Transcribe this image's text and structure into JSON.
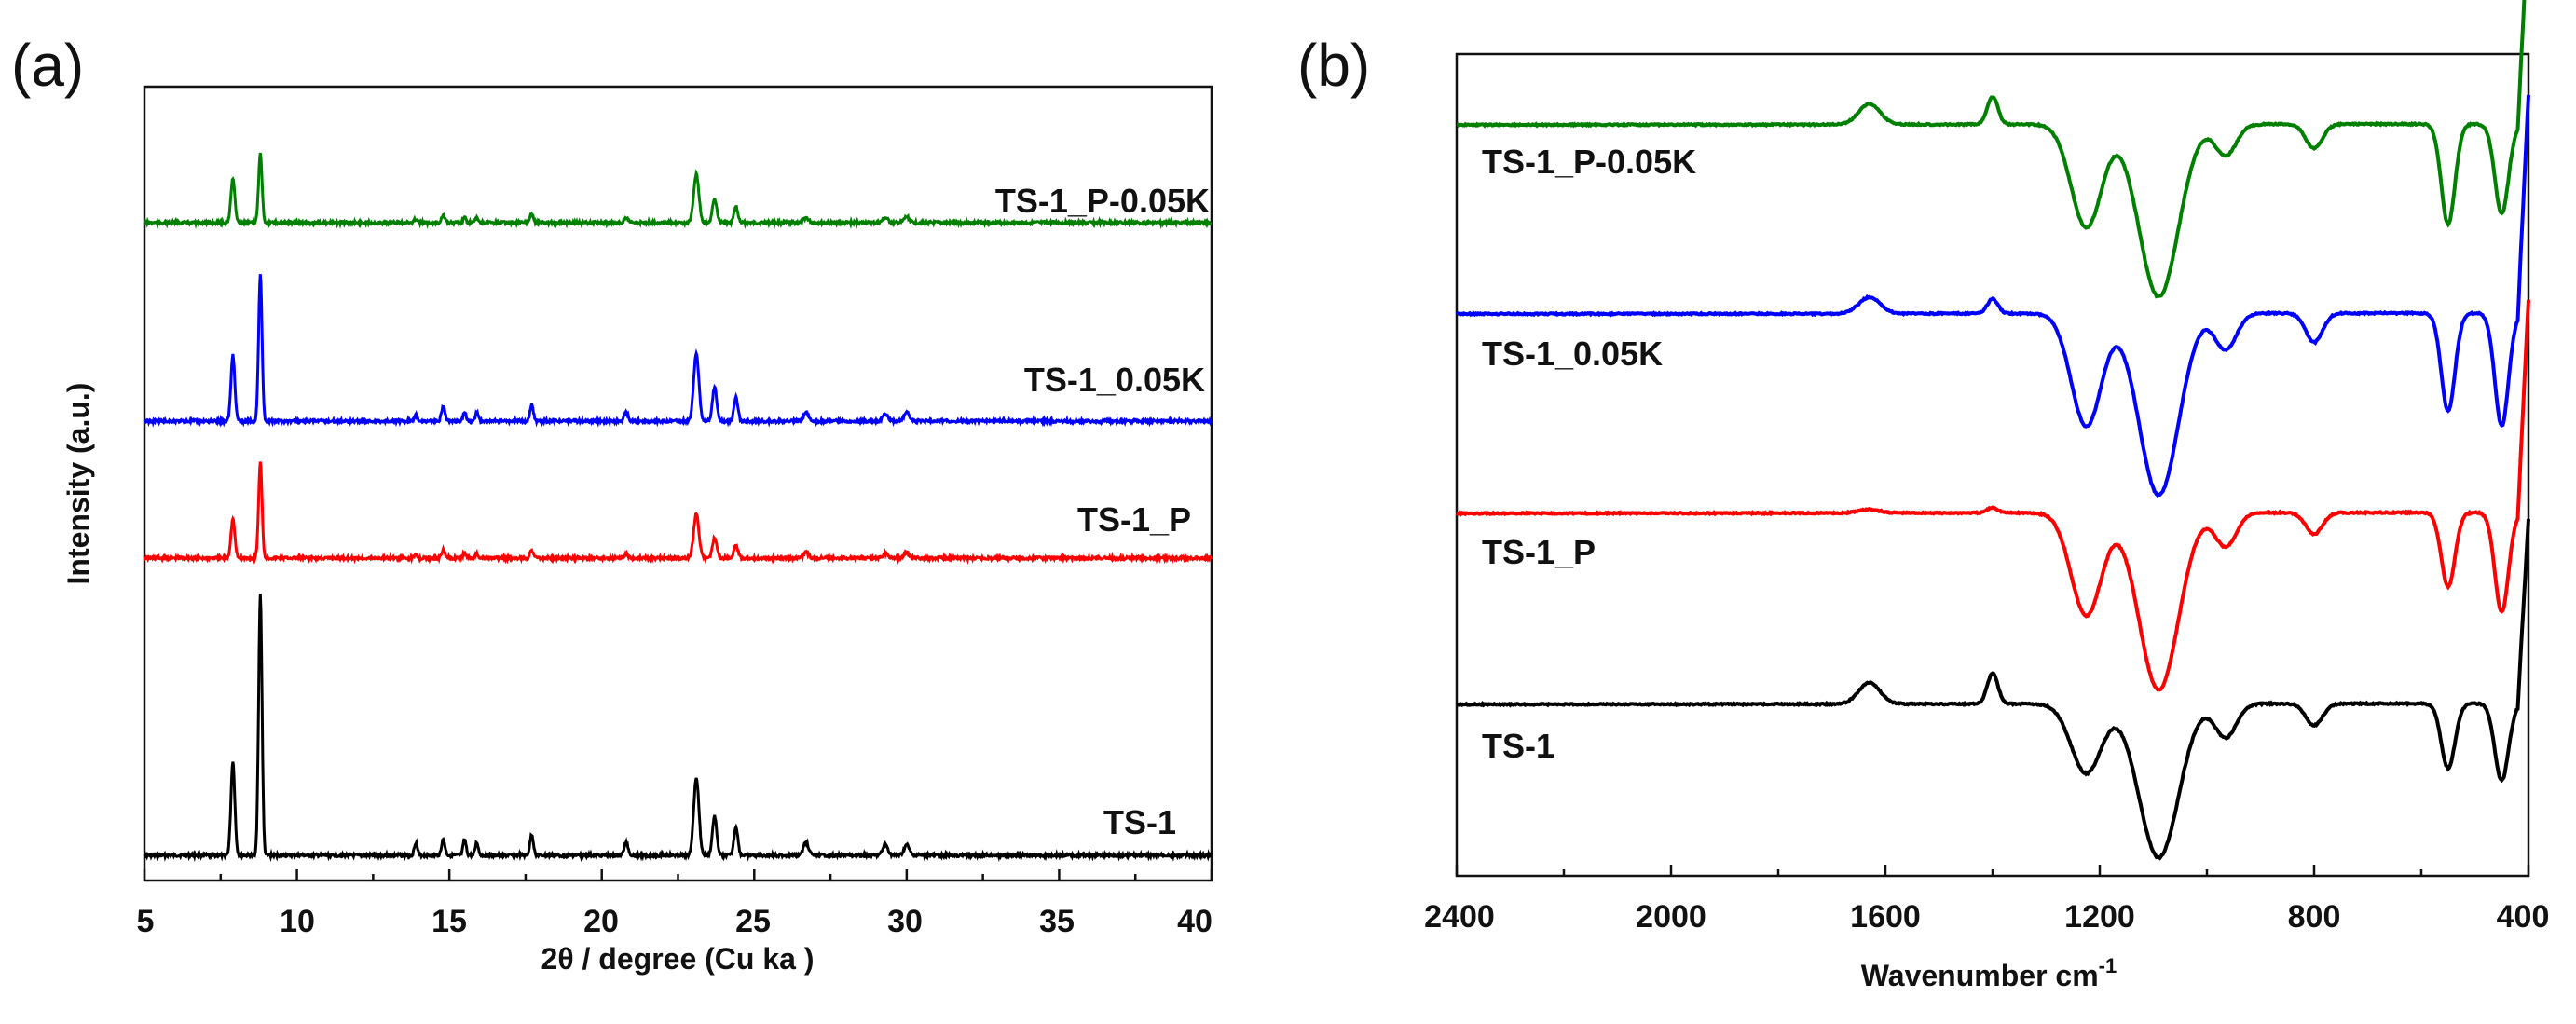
{
  "chart_data": [
    {
      "type": "line",
      "panel_label": "(a)",
      "xlabel": "2θ / degree (Cu ka )",
      "ylabel": "Intensity (a.u.)",
      "xlim": [
        5,
        40
      ],
      "xticks": [
        "5",
        "10",
        "15",
        "20",
        "25",
        "30",
        "35",
        "40"
      ],
      "y_ticks_shown": false,
      "grid": false,
      "legend": "inline labels at right end of each curve",
      "peaks_2theta": [
        7.9,
        8.8,
        13.9,
        14.8,
        15.5,
        15.9,
        17.7,
        20.8,
        23.1,
        23.7,
        24.4,
        26.7,
        29.3,
        30.0
      ],
      "series": [
        {
          "name": "TS-1",
          "color": "#000000",
          "peak_heights": [
            0.36,
            1.0,
            0.05,
            0.06,
            0.06,
            0.05,
            0.08,
            0.05,
            0.3,
            0.15,
            0.11,
            0.05,
            0.04,
            0.04
          ]
        },
        {
          "name": "TS-1_P",
          "color": "#ff0000",
          "peak_heights": [
            0.35,
            0.86,
            0.04,
            0.07,
            0.05,
            0.04,
            0.07,
            0.04,
            0.4,
            0.18,
            0.12,
            0.05,
            0.04,
            0.05
          ]
        },
        {
          "name": "TS-1_0.05K",
          "color": "#0000ff",
          "peak_heights": [
            0.45,
            1.0,
            0.04,
            0.1,
            0.06,
            0.06,
            0.11,
            0.06,
            0.46,
            0.23,
            0.16,
            0.06,
            0.05,
            0.06
          ]
        },
        {
          "name": "TS-1_P-0.05K",
          "color": "#008000",
          "peak_heights": [
            0.46,
            0.72,
            0.04,
            0.08,
            0.05,
            0.05,
            0.09,
            0.05,
            0.5,
            0.24,
            0.16,
            0.05,
            0.05,
            0.06
          ]
        }
      ]
    },
    {
      "type": "line",
      "panel_label": "(b)",
      "xlabel": "Wavenumber cm",
      "xlabel_superscript": "-1",
      "xlim": [
        2400,
        400
      ],
      "xticks": [
        "2400",
        "2000",
        "1600",
        "1200",
        "800",
        "400"
      ],
      "y_ticks_shown": false,
      "grid": false,
      "legend": "inline labels at left of each curve",
      "bands_cm-1": [
        1630,
        1400,
        1225,
        1090,
        965,
        800,
        550,
        450
      ],
      "series": [
        {
          "name": "TS-1_P-0.05K",
          "color": "#008000",
          "band_depths": [
            -0.12,
            -0.16,
            0.6,
            1.0,
            0.18,
            0.14,
            0.58,
            0.52
          ]
        },
        {
          "name": "TS-1_0.05K",
          "color": "#0000ff",
          "band_depths": [
            -0.09,
            -0.08,
            0.62,
            1.0,
            0.2,
            0.16,
            0.54,
            0.62
          ]
        },
        {
          "name": "TS-1_P",
          "color": "#ff0000",
          "band_depths": [
            -0.02,
            -0.03,
            0.58,
            1.0,
            0.19,
            0.12,
            0.42,
            0.56
          ]
        },
        {
          "name": "TS-1",
          "color": "#000000",
          "band_depths": [
            -0.14,
            -0.2,
            0.45,
            1.0,
            0.22,
            0.14,
            0.42,
            0.5
          ]
        }
      ]
    }
  ]
}
